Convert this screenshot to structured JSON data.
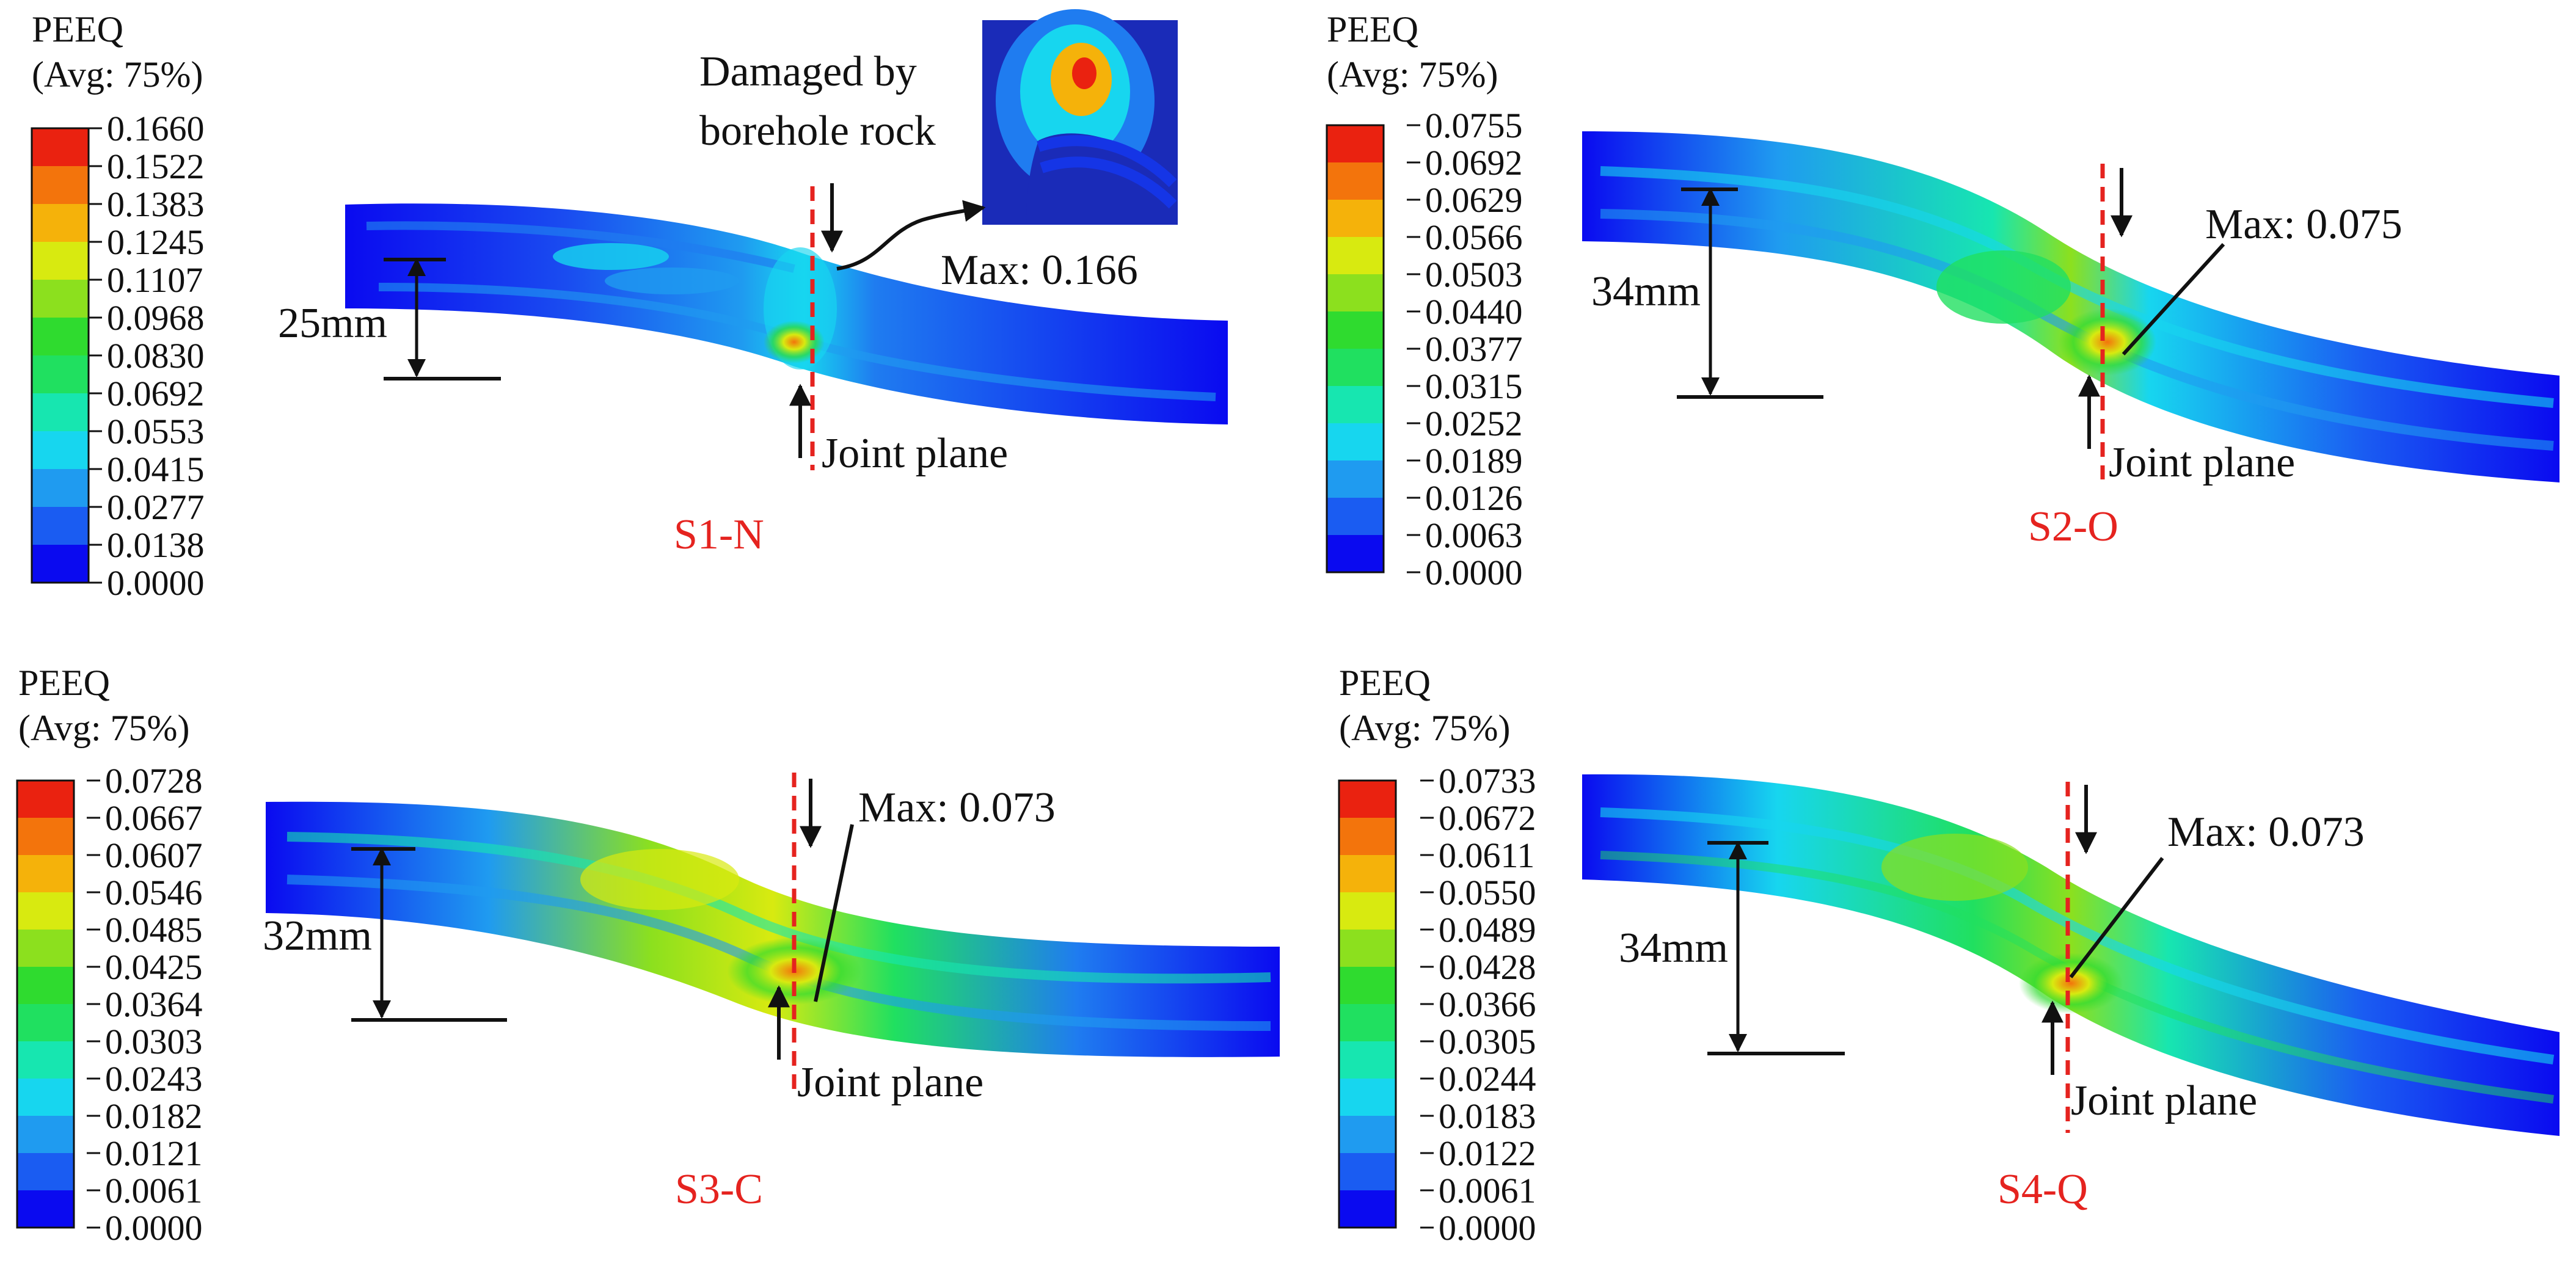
{
  "colors": {
    "contour": [
      "#0a0af0",
      "#1a5cf2",
      "#1f9bf0",
      "#17d6ef",
      "#17e6b0",
      "#20e060",
      "#2fdb2f",
      "#8ce01e",
      "#d8ea10",
      "#f5b20a",
      "#f3740c",
      "#ea2210"
    ],
    "body_base": "#1535e6",
    "label_red": "#e5231f",
    "joint_line": "#e5231f",
    "annotation": "#111111"
  },
  "panels": [
    {
      "id": "S1-N",
      "label": "S1-N",
      "legend": {
        "title_line1": "PEEQ",
        "title_line2": "(Avg: 75%)",
        "ticks": [
          "0.1660",
          "0.1522",
          "0.1383",
          "0.1245",
          "0.1107",
          "0.0968",
          "0.0830",
          "0.0692",
          "0.0553",
          "0.0415",
          "0.0277",
          "0.0138",
          "0.0000"
        ]
      },
      "displacement": "25mm",
      "max": "Max: 0.166",
      "joint": "Joint plane",
      "damage_line1": "Damaged by",
      "damage_line2": "borehole rock",
      "max_strain_level": 1.0
    },
    {
      "id": "S2-O",
      "label": "S2-O",
      "legend": {
        "title_line1": "PEEQ",
        "title_line2": "(Avg: 75%)",
        "ticks": [
          "0.0755",
          "0.0692",
          "0.0629",
          "0.0566",
          "0.0503",
          "0.0440",
          "0.0377",
          "0.0315",
          "0.0252",
          "0.0189",
          "0.0126",
          "0.0063",
          "0.0000"
        ]
      },
      "displacement": "34mm",
      "max": "Max: 0.075",
      "joint": "Joint plane"
    },
    {
      "id": "S3-C",
      "label": "S3-C",
      "legend": {
        "title_line1": "PEEQ",
        "title_line2": "(Avg: 75%)",
        "ticks": [
          "0.0728",
          "0.0667",
          "0.0607",
          "0.0546",
          "0.0485",
          "0.0425",
          "0.0364",
          "0.0303",
          "0.0243",
          "0.0182",
          "0.0121",
          "0.0061",
          "0.0000"
        ]
      },
      "displacement": "32mm",
      "max": "Max: 0.073",
      "joint": "Joint plane"
    },
    {
      "id": "S4-Q",
      "label": "S4-Q",
      "legend": {
        "title_line1": "PEEQ",
        "title_line2": "(Avg: 75%)",
        "ticks": [
          "0.0733",
          "0.0672",
          "0.0611",
          "0.0550",
          "0.0489",
          "0.0428",
          "0.0366",
          "0.0305",
          "0.0244",
          "0.0183",
          "0.0122",
          "0.0061",
          "0.0000"
        ]
      },
      "displacement": "34mm",
      "max": "Max: 0.073",
      "joint": "Joint plane"
    }
  ]
}
